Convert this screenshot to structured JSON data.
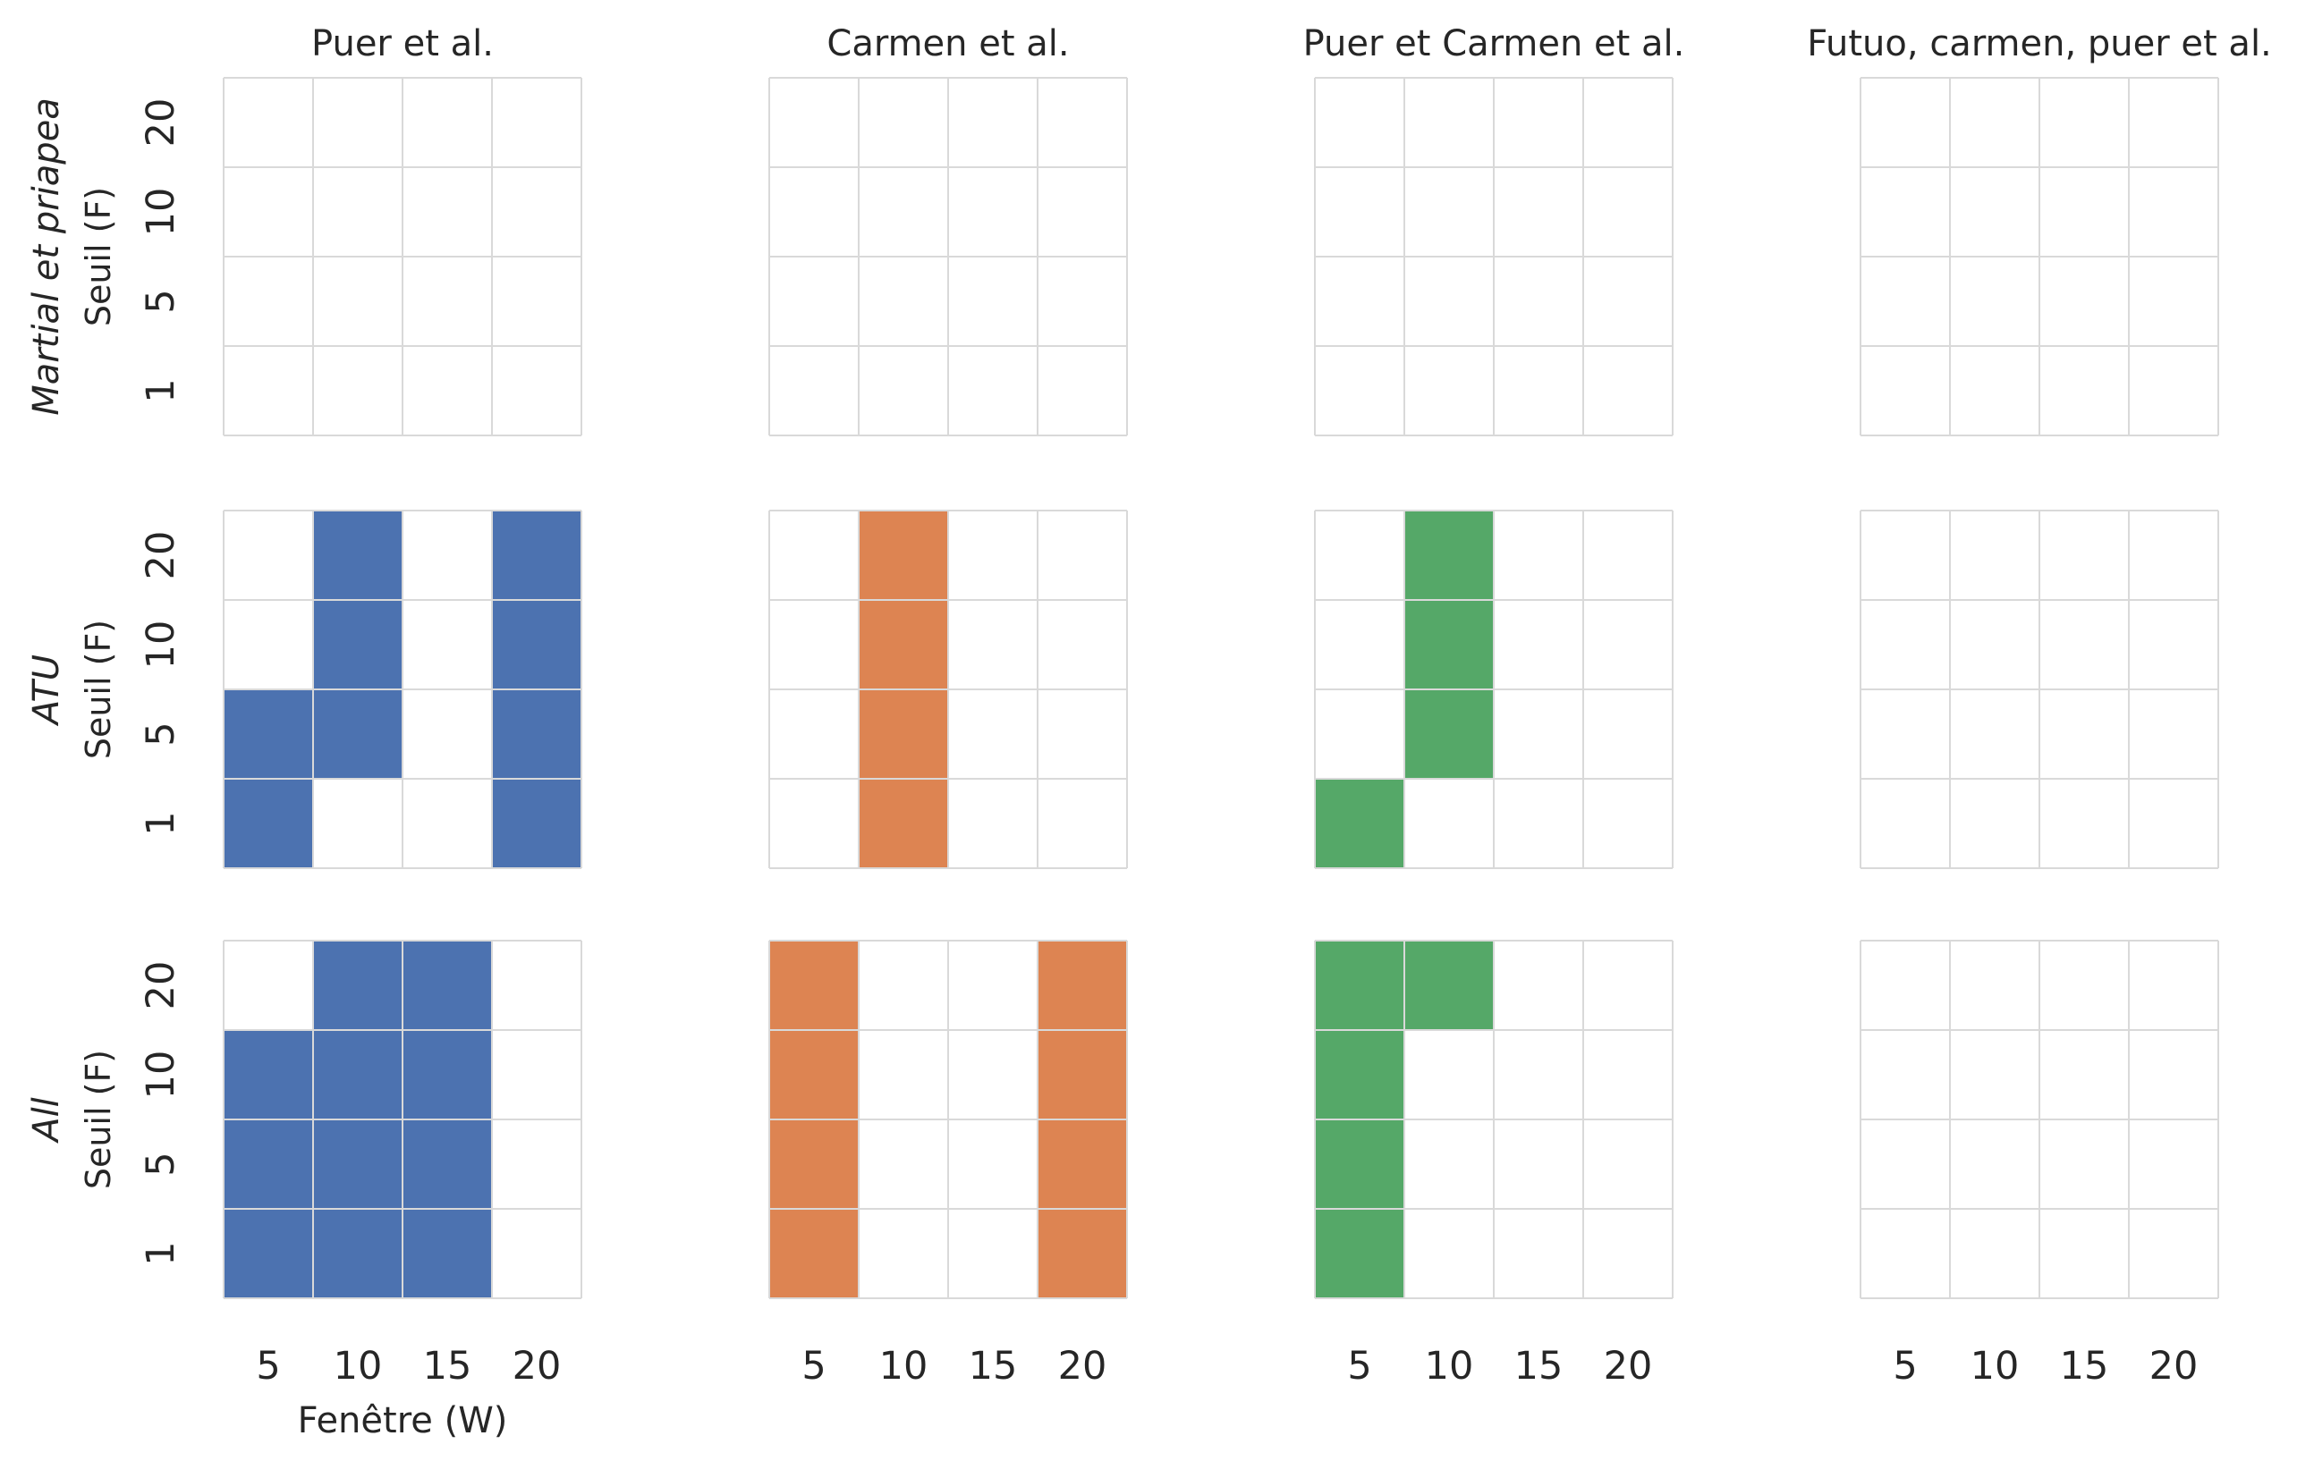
{
  "chart_data": {
    "type": "heatmap",
    "columns": [
      "Puer et al.",
      "Carmen et al.",
      "Puer et Carmen et al.",
      "Futuo, carmen, puer et al."
    ],
    "rows": [
      "Martial et priapea",
      "ATU",
      "All"
    ],
    "x_ticks": [
      "5",
      "10",
      "15",
      "20"
    ],
    "y_ticks": [
      "20",
      "10",
      "5",
      "1"
    ],
    "xlabel": "Fenêtre (W)",
    "ylabel": "Seuil (F)",
    "colors": [
      "#4c72b0",
      "#dd8452",
      "#55a868",
      "#c44e52"
    ],
    "grid_color": "#d9d9d9",
    "cells": [
      [
        [
          [
            0,
            0,
            0,
            0
          ],
          [
            0,
            0,
            0,
            0
          ],
          [
            0,
            0,
            0,
            0
          ],
          [
            0,
            0,
            0,
            0
          ]
        ],
        [
          [
            0,
            0,
            0,
            0
          ],
          [
            0,
            0,
            0,
            0
          ],
          [
            0,
            0,
            0,
            0
          ],
          [
            0,
            0,
            0,
            0
          ]
        ],
        [
          [
            0,
            0,
            0,
            0
          ],
          [
            0,
            0,
            0,
            0
          ],
          [
            0,
            0,
            0,
            0
          ],
          [
            0,
            0,
            0,
            0
          ]
        ],
        [
          [
            0,
            0,
            0,
            0
          ],
          [
            0,
            0,
            0,
            0
          ],
          [
            0,
            0,
            0,
            0
          ],
          [
            0,
            0,
            0,
            0
          ]
        ]
      ],
      [
        [
          [
            0,
            1,
            0,
            1
          ],
          [
            0,
            1,
            0,
            1
          ],
          [
            1,
            1,
            0,
            1
          ],
          [
            1,
            0,
            0,
            1
          ]
        ],
        [
          [
            0,
            1,
            0,
            0
          ],
          [
            0,
            1,
            0,
            0
          ],
          [
            0,
            1,
            0,
            0
          ],
          [
            0,
            1,
            0,
            0
          ]
        ],
        [
          [
            0,
            1,
            0,
            0
          ],
          [
            0,
            1,
            0,
            0
          ],
          [
            0,
            1,
            0,
            0
          ],
          [
            1,
            0,
            0,
            0
          ]
        ],
        [
          [
            0,
            0,
            0,
            0
          ],
          [
            0,
            0,
            0,
            0
          ],
          [
            0,
            0,
            0,
            0
          ],
          [
            0,
            0,
            0,
            0
          ]
        ]
      ],
      [
        [
          [
            0,
            1,
            1,
            0
          ],
          [
            1,
            1,
            1,
            0
          ],
          [
            1,
            1,
            1,
            0
          ],
          [
            1,
            1,
            1,
            0
          ]
        ],
        [
          [
            1,
            0,
            0,
            1
          ],
          [
            1,
            0,
            0,
            1
          ],
          [
            1,
            0,
            0,
            1
          ],
          [
            1,
            0,
            0,
            1
          ]
        ],
        [
          [
            1,
            1,
            0,
            0
          ],
          [
            1,
            0,
            0,
            0
          ],
          [
            1,
            0,
            0,
            0
          ],
          [
            1,
            0,
            0,
            0
          ]
        ],
        [
          [
            0,
            0,
            0,
            0
          ],
          [
            0,
            0,
            0,
            0
          ],
          [
            0,
            0,
            0,
            0
          ],
          [
            0,
            0,
            0,
            0
          ]
        ]
      ]
    ]
  }
}
